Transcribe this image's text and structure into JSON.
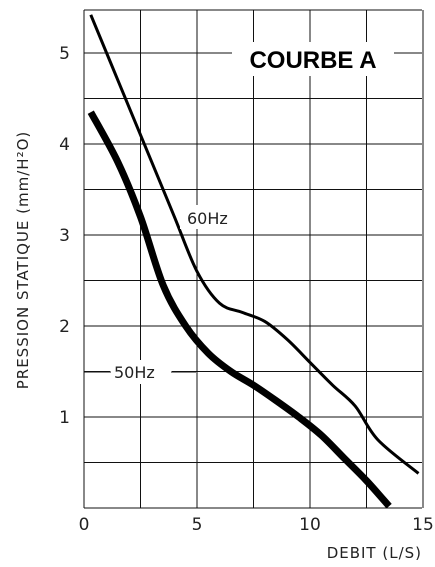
{
  "chart_data": {
    "type": "line",
    "title": "COURBE A",
    "xlabel": "DEBIT (L/S)",
    "ylabel": "PRESSION STATIQUE (mm/H²O)",
    "xlim": [
      0,
      15
    ],
    "ylim": [
      0,
      5.5
    ],
    "x_ticks": [
      "0",
      "5",
      "10",
      "15"
    ],
    "y_ticks": [
      "1",
      "2",
      "3",
      "4",
      "5"
    ],
    "grid": true,
    "series": [
      {
        "name": "60Hz",
        "points": [
          [
            0.3,
            5.42
          ],
          [
            1.5,
            4.7
          ],
          [
            3,
            3.8
          ],
          [
            4,
            3.2
          ],
          [
            5,
            2.6
          ],
          [
            6,
            2.25
          ],
          [
            7,
            2.15
          ],
          [
            8,
            2.05
          ],
          [
            9,
            1.85
          ],
          [
            10,
            1.6
          ],
          [
            11,
            1.35
          ],
          [
            12,
            1.12
          ],
          [
            13,
            0.75
          ],
          [
            14.8,
            0.38
          ]
        ]
      },
      {
        "name": "50Hz",
        "points": [
          [
            0.3,
            4.35
          ],
          [
            1.5,
            3.8
          ],
          [
            2.5,
            3.2
          ],
          [
            3.5,
            2.45
          ],
          [
            4.5,
            2.0
          ],
          [
            5.5,
            1.7
          ],
          [
            6.5,
            1.5
          ],
          [
            7.5,
            1.35
          ],
          [
            8.5,
            1.18
          ],
          [
            9.5,
            1.0
          ],
          [
            10.5,
            0.8
          ],
          [
            11.5,
            0.55
          ],
          [
            12.5,
            0.3
          ],
          [
            13.5,
            0.02
          ]
        ]
      }
    ]
  }
}
